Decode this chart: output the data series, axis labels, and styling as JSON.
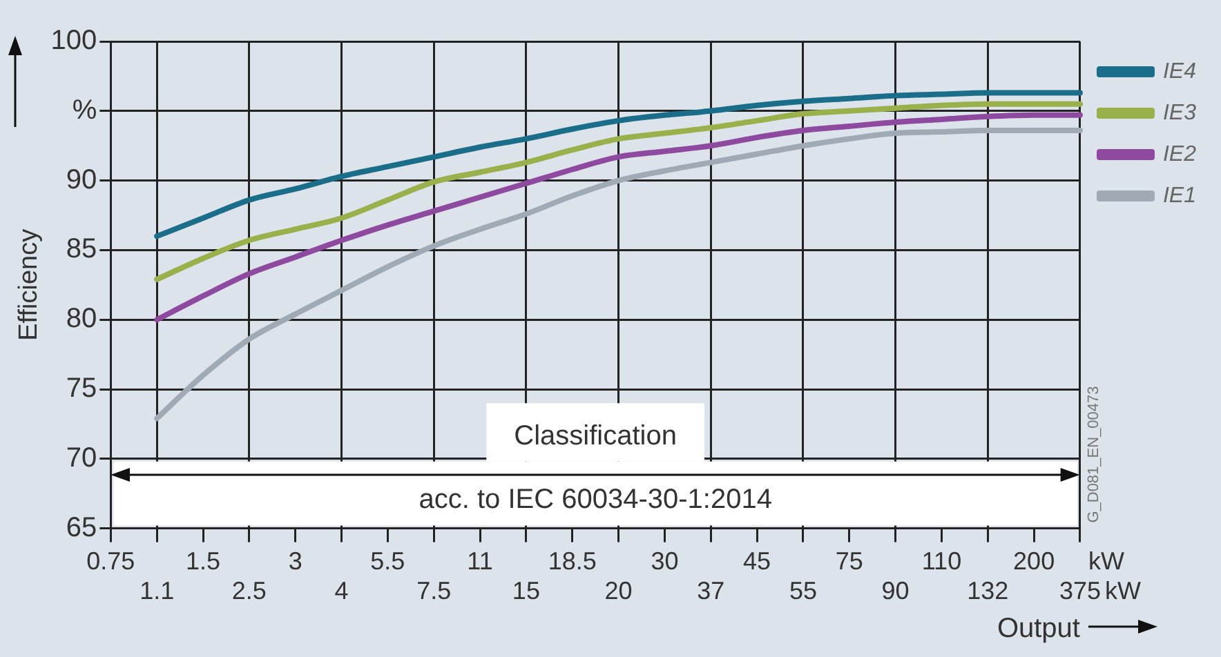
{
  "chart_data": {
    "type": "line",
    "xlabel": "Output",
    "ylabel": "Efficiency",
    "categories": [
      "0.75",
      "1.1",
      "1.5",
      "2.5",
      "3",
      "4",
      "5.5",
      "7.5",
      "11",
      "15",
      "18.5",
      "20",
      "30",
      "37",
      "45",
      "55",
      "75",
      "90",
      "110",
      "132",
      "200",
      "375"
    ],
    "series": [
      {
        "name": "IE4",
        "color": "#1a6e8a",
        "values": [
          null,
          86.0,
          87.3,
          88.6,
          89.4,
          90.3,
          91.0,
          91.7,
          92.4,
          93.0,
          93.7,
          94.3,
          94.7,
          95.0,
          95.4,
          95.7,
          95.9,
          96.1,
          96.2,
          96.3,
          96.3,
          96.3
        ]
      },
      {
        "name": "IE3",
        "color": "#9ab04a",
        "values": [
          null,
          82.9,
          84.4,
          85.7,
          86.5,
          87.3,
          88.6,
          89.9,
          90.6,
          91.3,
          92.2,
          93.0,
          93.4,
          93.8,
          94.3,
          94.8,
          95.0,
          95.2,
          95.4,
          95.5,
          95.5,
          95.5
        ]
      },
      {
        "name": "IE2",
        "color": "#8e4a9e",
        "values": [
          null,
          80.0,
          81.7,
          83.3,
          84.5,
          85.7,
          86.8,
          87.8,
          88.8,
          89.8,
          90.8,
          91.7,
          92.1,
          92.5,
          93.1,
          93.6,
          93.9,
          94.2,
          94.4,
          94.6,
          94.7,
          94.7
        ]
      },
      {
        "name": "IE1",
        "color": "#a0aab4",
        "values": [
          null,
          72.9,
          76.0,
          78.6,
          80.4,
          82.1,
          83.8,
          85.3,
          86.5,
          87.6,
          88.9,
          90.0,
          90.7,
          91.3,
          91.9,
          92.5,
          93.0,
          93.4,
          93.5,
          93.6,
          93.6,
          93.6
        ]
      }
    ],
    "ylim": [
      65,
      100
    ],
    "yticks": [
      65,
      70,
      75,
      80,
      85,
      90,
      {
        "value": 95,
        "label": "%"
      },
      100
    ],
    "grid": true,
    "legend": "top right",
    "marker": "none",
    "line_style": "solid",
    "annotations": [
      "Classification",
      "acc. to IEC 60034-30-1:2014",
      "kW",
      "kW",
      "G_D081_EN_00473"
    ]
  }
}
